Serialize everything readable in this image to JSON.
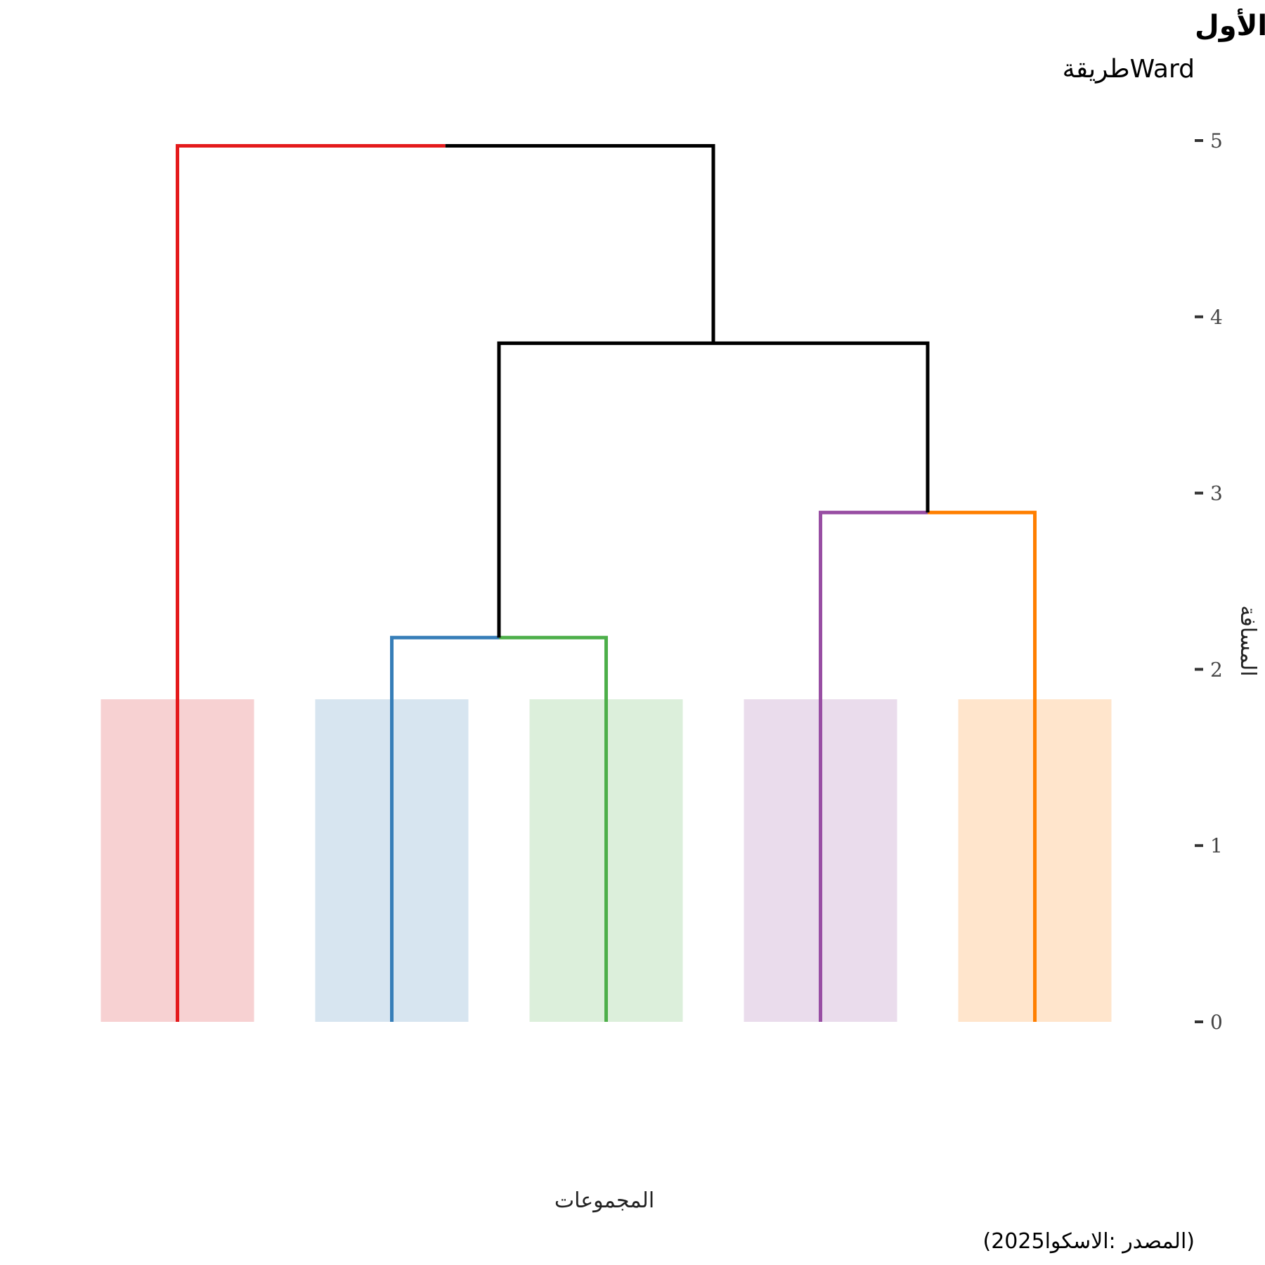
{
  "chart_data": {
    "type": "dendrogram",
    "title": "رسم توضيحي لتمرين تحديد السمات الأول",
    "subtitle": "طريقةWard",
    "xlabel": "المجموعات",
    "ylabel": "المسافة",
    "caption": "(2025المصدر :الاسكوا)",
    "yaxis_position": "right",
    "ylim": [
      -0.4,
      5.2
    ],
    "y_ticks": [
      0,
      1,
      2,
      3,
      4,
      5
    ],
    "grid": false,
    "legend": "none",
    "band_height": 1.83,
    "leaves": [
      {
        "id": "L1",
        "color": "#e41a1c",
        "band_color": "#f7d1d2"
      },
      {
        "id": "L2",
        "color": "#377eb8",
        "band_color": "#d7e5f0"
      },
      {
        "id": "L3",
        "color": "#4daf4a",
        "band_color": "#dcefdb"
      },
      {
        "id": "L4",
        "color": "#984ea3",
        "band_color": "#eadcec"
      },
      {
        "id": "L5",
        "color": "#ff7f00",
        "band_color": "#ffe5cc"
      }
    ],
    "merges": [
      {
        "left": "L2",
        "right": "L3",
        "height": 2.18,
        "id": "M1"
      },
      {
        "left": "L4",
        "right": "L5",
        "height": 2.89,
        "id": "M2"
      },
      {
        "left": "M1",
        "right": "M2",
        "height": 3.85,
        "id": "M3"
      },
      {
        "left": "L1",
        "right": "M3",
        "height": 4.97,
        "id": "M4"
      }
    ],
    "link_color": "#000000"
  }
}
